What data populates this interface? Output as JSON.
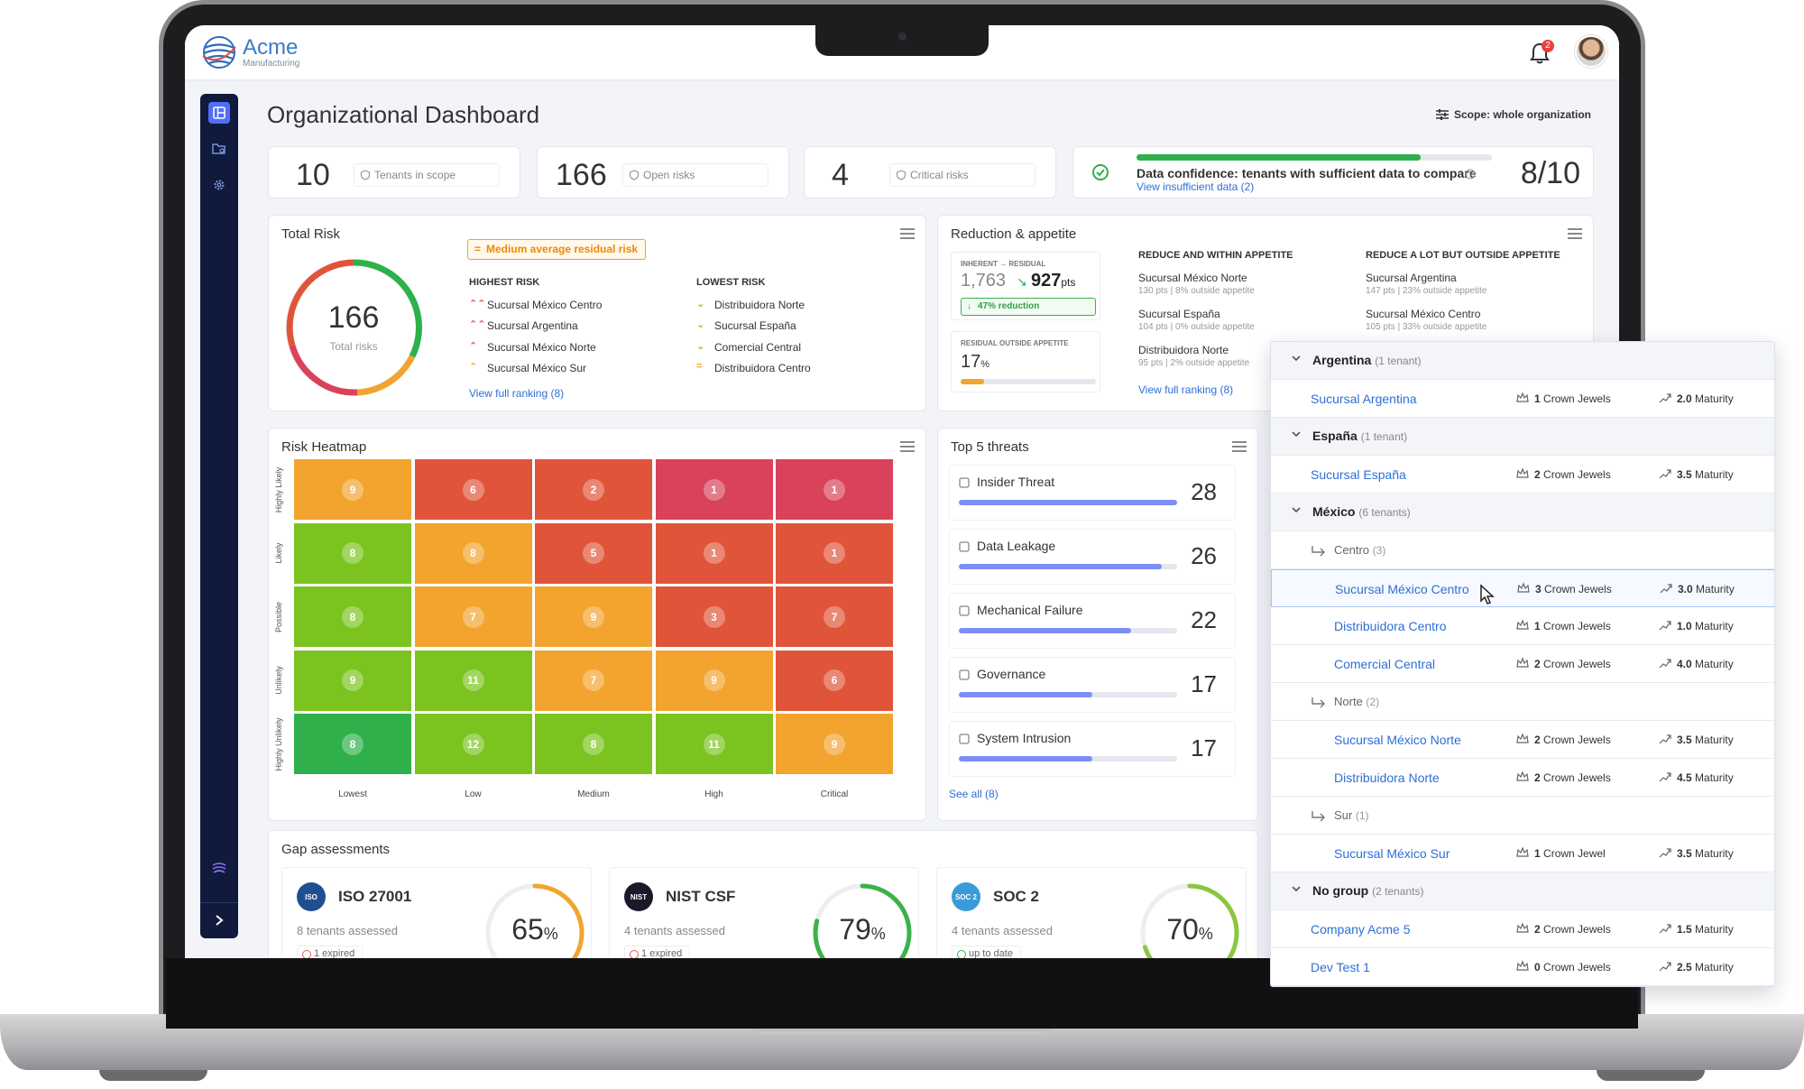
{
  "brand": {
    "name": "Acme",
    "sub": "Manufacturing"
  },
  "header": {
    "notifications_count": "2"
  },
  "page": {
    "title": "Organizational Dashboard",
    "scope_label": "Scope: whole organization"
  },
  "kpis": [
    {
      "value": "10",
      "label": "Tenants in scope"
    },
    {
      "value": "166",
      "label": "Open risks"
    },
    {
      "value": "4",
      "label": "Critical risks"
    }
  ],
  "confidence": {
    "label": "Data confidence: tenants with sufficient data to compare",
    "link": "View insufficient data (2)",
    "value": "8/10",
    "progress": 0.8
  },
  "total_risk": {
    "title": "Total Risk",
    "tag": "Medium average residual risk",
    "total": "166",
    "total_label": "Total risks",
    "highest_head": "HIGHEST RISK",
    "lowest_head": "LOWEST RISK",
    "highest": [
      "Sucursal México Centro",
      "Sucursal Argentina",
      "Sucursal México Norte",
      "Sucursal México Sur"
    ],
    "lowest": [
      "Distribuidora Norte",
      "Sucursal España",
      "Comercial Central",
      "Distribuidora Centro"
    ],
    "link": "View full ranking (8)"
  },
  "reduction": {
    "title": "Reduction & appetite",
    "inherent_label": "INHERENT → RESIDUAL",
    "inherent": "1,763",
    "residual": "927",
    "residual_unit": "pts",
    "reduction_tag": "47% reduction",
    "outside_label": "RESIDUAL OUTSIDE APPETITE",
    "outside_value": "17",
    "outside_unit": "%",
    "outside_fraction": 0.17,
    "within_head": "REDUCE AND WITHIN APPETITE",
    "outside_head": "REDUCE A LOT BUT OUTSIDE APPETITE",
    "within": [
      {
        "name": "Sucursal México Norte",
        "sub": "130 pts  |  8% outside appetite"
      },
      {
        "name": "Sucursal España",
        "sub": "104 pts  |  0% outside appetite"
      },
      {
        "name": "Distribuidora Norte",
        "sub": "95 pts  |  2% outside appetite"
      }
    ],
    "outside": [
      {
        "name": "Sucursal Argentina",
        "sub": "147 pts  |  23% outside appetite"
      },
      {
        "name": "Sucursal México Centro",
        "sub": "105 pts  |  33% outside appetite"
      }
    ],
    "link": "View full ranking (8)"
  },
  "heatmap": {
    "title": "Risk Heatmap",
    "rows": [
      "Highly Likely",
      "Likely",
      "Possible",
      "Unlikely",
      "Highly Unlikely"
    ],
    "cols": [
      "Lowest",
      "Low",
      "Medium",
      "High",
      "Critical"
    ],
    "values": [
      [
        9,
        6,
        2,
        1,
        1
      ],
      [
        8,
        8,
        5,
        1,
        1
      ],
      [
        8,
        7,
        9,
        3,
        7
      ],
      [
        9,
        11,
        7,
        9,
        6
      ],
      [
        8,
        12,
        8,
        11,
        9
      ]
    ],
    "colors": [
      [
        "#f2a42f",
        "#e0553a",
        "#e0553a",
        "#d9425a",
        "#d9425a"
      ],
      [
        "#7bc31f",
        "#f2a42f",
        "#e0553a",
        "#e0553a",
        "#e0553a"
      ],
      [
        "#7bc31f",
        "#f2a42f",
        "#f2a42f",
        "#e0553a",
        "#e0553a"
      ],
      [
        "#7bc31f",
        "#7bc31f",
        "#f2a42f",
        "#f2a42f",
        "#e0553a"
      ],
      [
        "#2fb04a",
        "#7bc31f",
        "#7bc31f",
        "#7bc31f",
        "#f2a42f"
      ]
    ]
  },
  "threats": {
    "title": "Top 5 threats",
    "items": [
      {
        "name": "Insider Threat",
        "count": "28",
        "fraction": 1.0
      },
      {
        "name": "Data Leakage",
        "count": "26",
        "fraction": 0.93
      },
      {
        "name": "Mechanical Failure",
        "count": "22",
        "fraction": 0.79
      },
      {
        "name": "Governance",
        "count": "17",
        "fraction": 0.61
      },
      {
        "name": "System Intrusion",
        "count": "17",
        "fraction": 0.61
      }
    ],
    "link": "See all (8)"
  },
  "gap": {
    "title": "Gap assessments",
    "items": [
      {
        "badge": "ISO",
        "name": "ISO 27001",
        "sub": "8 tenants assessed",
        "status": "1 expired",
        "ok": false,
        "pct": "65",
        "fraction": 0.65,
        "color": "#f2a42f",
        "badge_color": "#1f4f8f"
      },
      {
        "badge": "NIST",
        "name": "NIST CSF",
        "sub": "4 tenants assessed",
        "status": "1 expired",
        "ok": false,
        "pct": "79",
        "fraction": 0.79,
        "color": "#3bb24a",
        "badge_color": "#1a1a2a"
      },
      {
        "badge": "SOC 2",
        "name": "SOC 2",
        "sub": "4 tenants assessed",
        "status": "up to date",
        "ok": true,
        "pct": "70",
        "fraction": 0.7,
        "color": "#8cc63f",
        "badge_color": "#3a9bd9"
      }
    ]
  },
  "tenants_panel": {
    "groups": [
      {
        "name": "Argentina",
        "count": "(1 tenant)",
        "tenants": [
          {
            "name": "Sucursal Argentina",
            "cj": "1",
            "cj_label": "Crown Jewels",
            "mat": "2.0",
            "mat_label": "Maturity"
          }
        ]
      },
      {
        "name": "España",
        "count": "(1 tenant)",
        "tenants": [
          {
            "name": "Sucursal España",
            "cj": "2",
            "cj_label": "Crown Jewels",
            "mat": "3.5",
            "mat_label": "Maturity"
          }
        ]
      },
      {
        "name": "México",
        "count": "(6 tenants)",
        "subgroups": [
          {
            "name": "Centro",
            "count": "(3)",
            "tenants": [
              {
                "name": "Sucursal México Centro",
                "cj": "3",
                "cj_label": "Crown Jewels",
                "mat": "3.0",
                "mat_label": "Maturity",
                "highlight": true
              },
              {
                "name": "Distribuidora Centro",
                "cj": "1",
                "cj_label": "Crown Jewels",
                "mat": "1.0",
                "mat_label": "Maturity"
              },
              {
                "name": "Comercial Central",
                "cj": "2",
                "cj_label": "Crown Jewels",
                "mat": "4.0",
                "mat_label": "Maturity"
              }
            ]
          },
          {
            "name": "Norte",
            "count": "(2)",
            "tenants": [
              {
                "name": "Sucursal México Norte",
                "cj": "2",
                "cj_label": "Crown Jewels",
                "mat": "3.5",
                "mat_label": "Maturity"
              },
              {
                "name": "Distribuidora Norte",
                "cj": "2",
                "cj_label": "Crown Jewels",
                "mat": "4.5",
                "mat_label": "Maturity"
              }
            ]
          },
          {
            "name": "Sur",
            "count": "(1)",
            "tenants": [
              {
                "name": "Sucursal México Sur",
                "cj": "1",
                "cj_label": "Crown Jewel",
                "mat": "3.5",
                "mat_label": "Maturity"
              }
            ]
          }
        ]
      },
      {
        "name": "No group",
        "count": "(2 tenants)",
        "tenants": [
          {
            "name": "Company Acme 5",
            "cj": "2",
            "cj_label": "Crown Jewels",
            "mat": "1.5",
            "mat_label": "Maturity"
          },
          {
            "name": "Dev Test 1",
            "cj": "0",
            "cj_label": "Crown Jewels",
            "mat": "2.5",
            "mat_label": "Maturity"
          }
        ]
      }
    ]
  }
}
